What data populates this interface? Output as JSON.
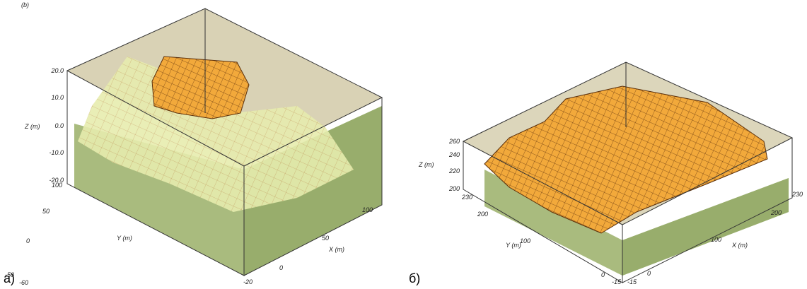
{
  "panels": [
    {
      "label": "а)",
      "corner_text": "(b)",
      "z_label": "Z (m)",
      "y_label": "Y (m)",
      "x_label": "X (m)",
      "z_ticks": [
        "20.0",
        "10.0",
        "0.0",
        "-10.0",
        "-20.0"
      ],
      "y_ticks": [
        "100",
        "50",
        "0",
        "-50",
        "-60"
      ],
      "x_ticks": [
        "-20",
        "0",
        "50",
        "100"
      ]
    },
    {
      "label": "б)",
      "z_label": "Z (m)",
      "y_label": "Y (m)",
      "x_label": "X (m)",
      "z_ticks": [
        "260",
        "240",
        "220",
        "200"
      ],
      "y_ticks": [
        "230",
        "200",
        "100",
        "0",
        "-15"
      ],
      "x_ticks": [
        "-15",
        "0",
        "100",
        "200",
        "230"
      ]
    }
  ]
}
